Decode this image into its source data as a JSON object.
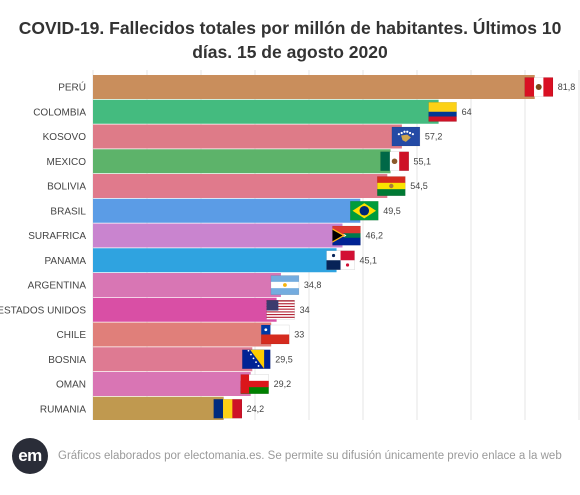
{
  "title": "COVID-19. Fallecidos totales por millón de habitantes. Últimos 10 días. 15 de agosto 2020",
  "footer": {
    "logo_text": "em",
    "note": "Gráficos elaborados por electomania.es. Se permite su difusión únicamente previo enlace a la web"
  },
  "chart_data": {
    "type": "bar",
    "orientation": "horizontal",
    "title": "COVID-19. Fallecidos totales por millón de habitantes. Últimos 10 días. 15 de agosto 2020",
    "xlim": [
      0,
      90
    ],
    "grid": true,
    "categories": [
      "PERÚ",
      "COLOMBIA",
      "KOSOVO",
      "MEXICO",
      "BOLIVIA",
      "BRASIL",
      "SURAFRICA",
      "PANAMA",
      "ARGENTINA",
      "ESTADOS UNIDOS",
      "CHILE",
      "BOSNIA",
      "OMAN",
      "RUMANIA"
    ],
    "values": [
      81.8,
      64,
      57.2,
      55.1,
      54.5,
      49.5,
      46.2,
      45.1,
      34.8,
      34,
      33,
      29.5,
      29.2,
      24.2
    ],
    "value_labels": [
      "81,8",
      "64",
      "57,2",
      "55,1",
      "54,5",
      "49,5",
      "46,2",
      "45,1",
      "34,8",
      "34",
      "33",
      "29,5",
      "29,2",
      "24,2"
    ],
    "colors": [
      "#c98e5c",
      "#44bb7f",
      "#de7b88",
      "#5db36a",
      "#e07a8c",
      "#5b9ce6",
      "#c984cf",
      "#2fa3e0",
      "#d876b4",
      "#d94fa5",
      "#e07f7a",
      "#de7a92",
      "#d975b4",
      "#c0994f"
    ],
    "flags": [
      "peru-flag",
      "colombia-flag",
      "kosovo-flag",
      "mexico-flag",
      "bolivia-flag",
      "brazil-flag",
      "south-africa-flag",
      "panama-flag",
      "argentina-flag",
      "usa-flag",
      "chile-flag",
      "bosnia-flag",
      "oman-flag",
      "romania-flag"
    ]
  }
}
